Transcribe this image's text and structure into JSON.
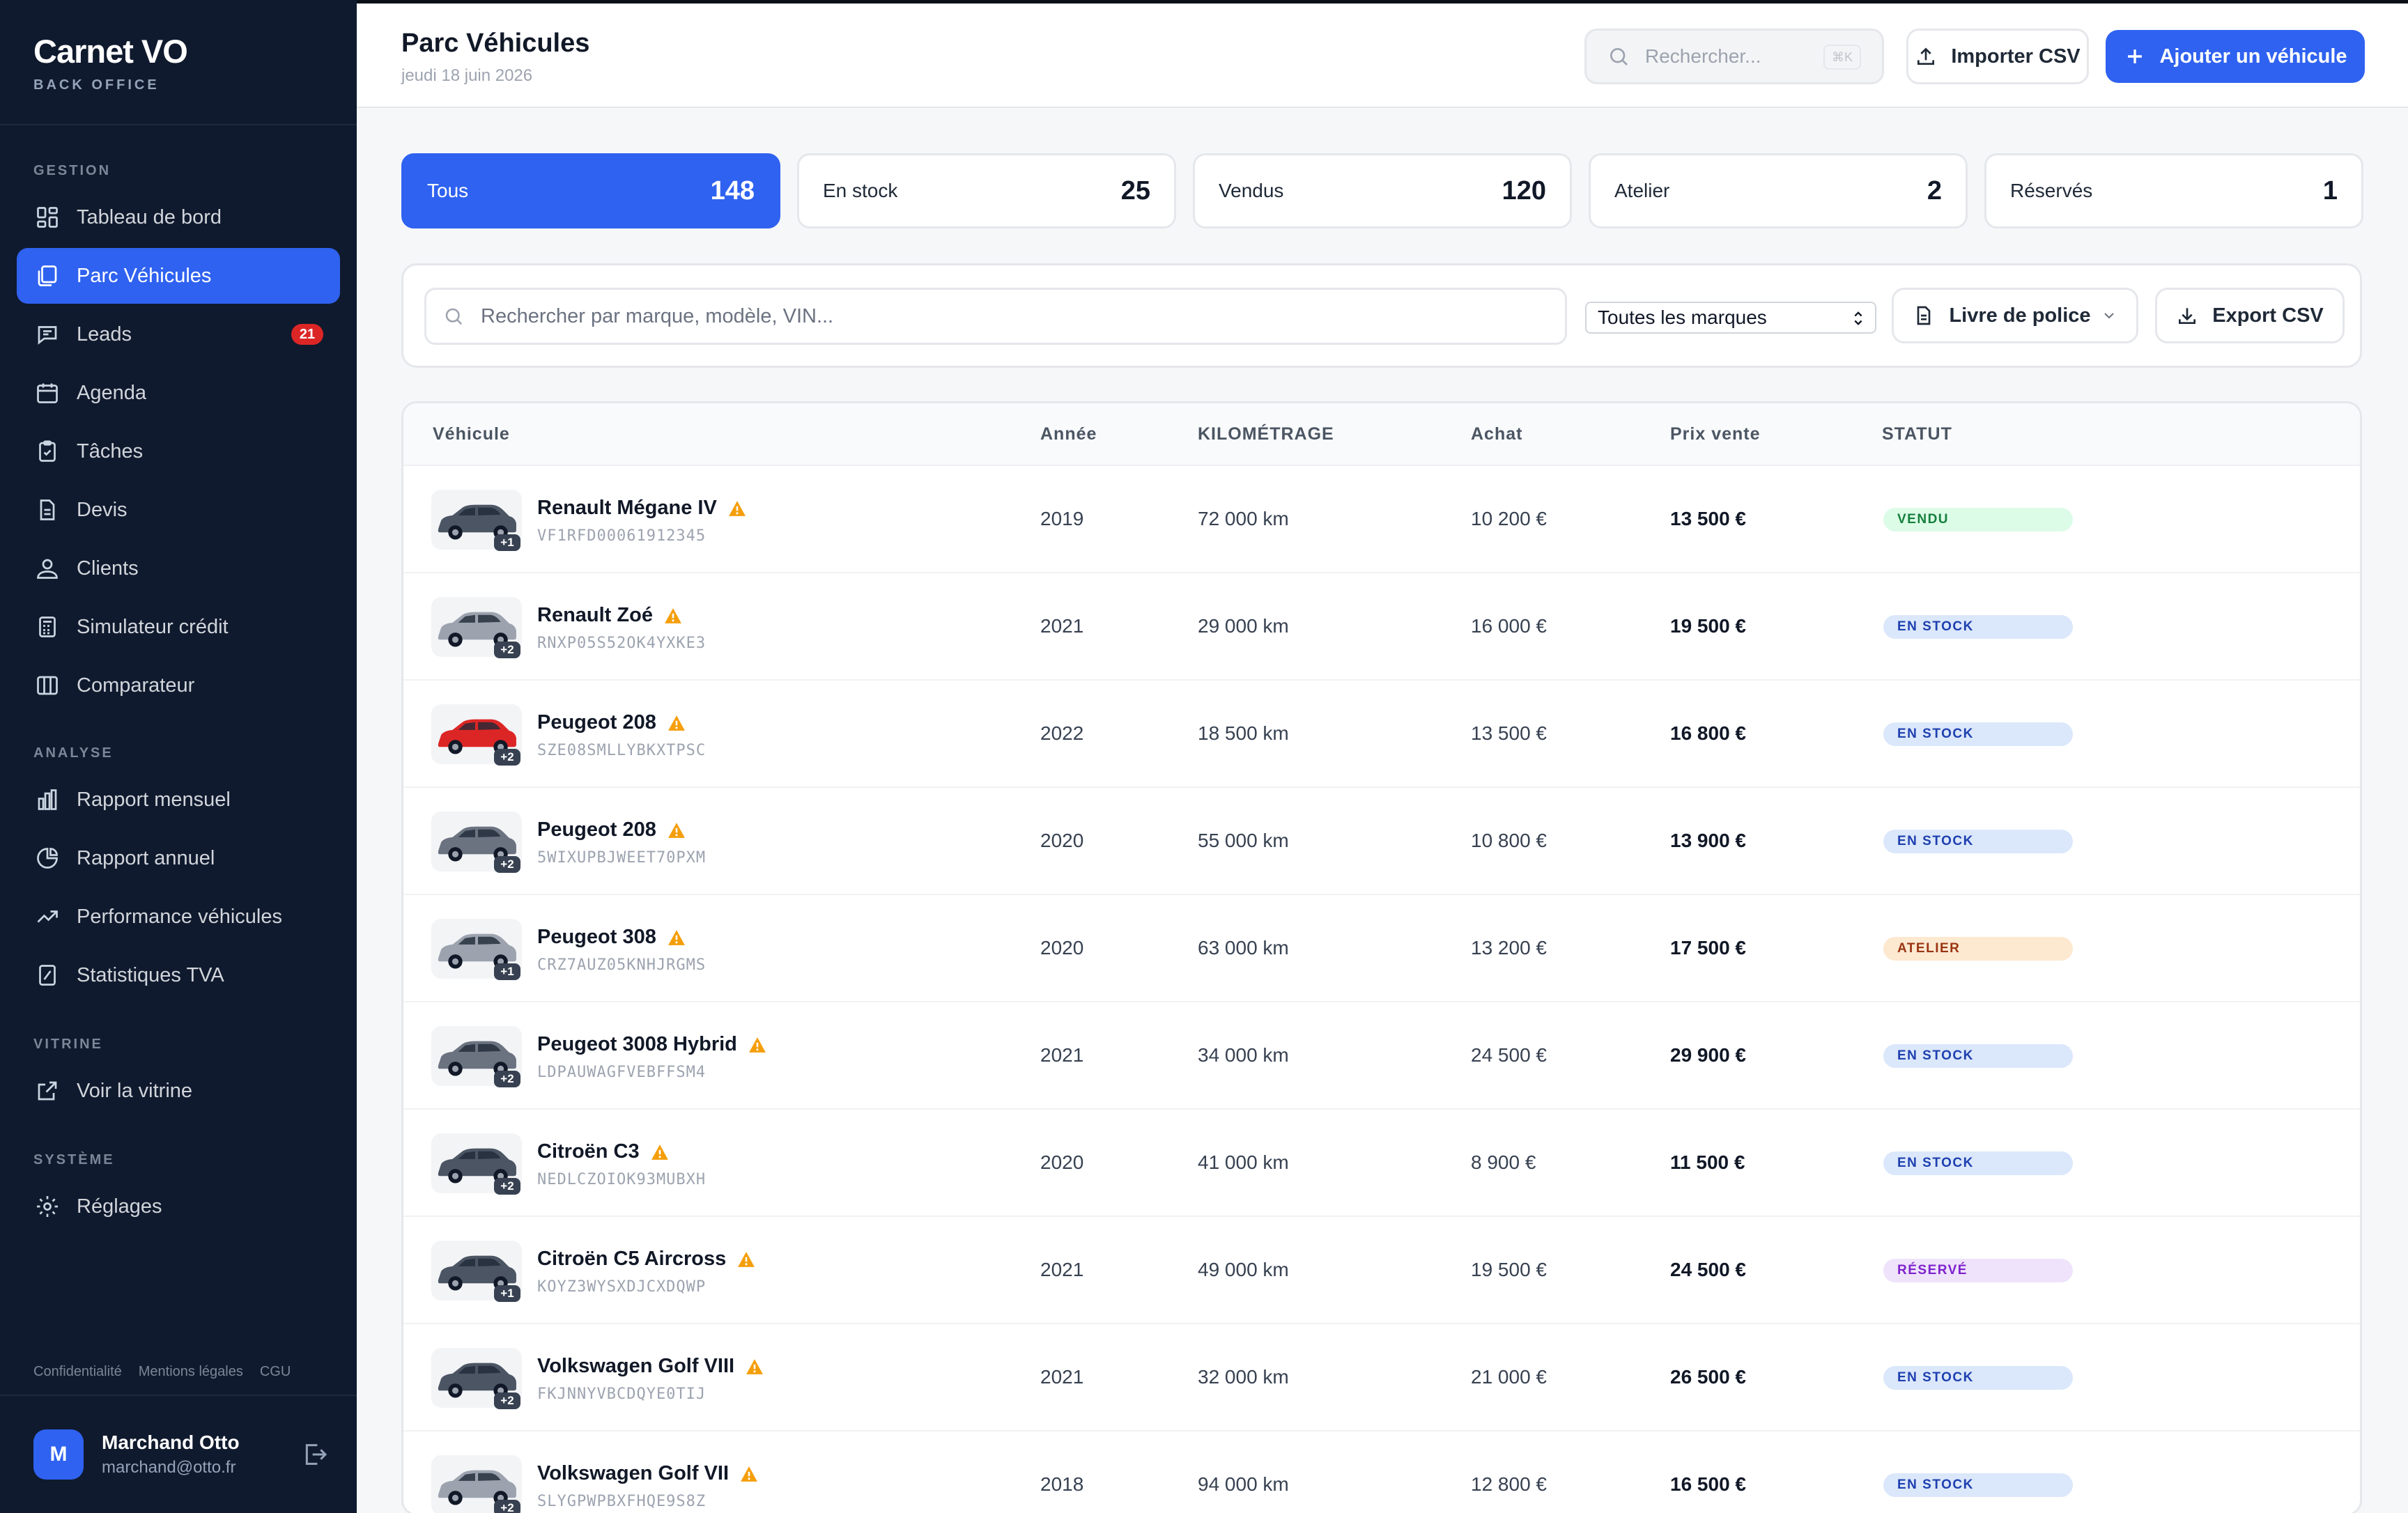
{
  "app": {
    "name": "Carnet VO",
    "subtitle": "BACK OFFICE"
  },
  "sidebar": {
    "sections": [
      {
        "label": "GESTION",
        "items": [
          {
            "label": "Tableau de bord",
            "icon": "dashboard-icon"
          },
          {
            "label": "Parc Véhicules",
            "icon": "car-stack-icon",
            "active": true
          },
          {
            "label": "Leads",
            "icon": "chat-icon",
            "badge": "21"
          },
          {
            "label": "Agenda",
            "icon": "calendar-icon"
          },
          {
            "label": "Tâches",
            "icon": "clipboard-icon"
          },
          {
            "label": "Devis",
            "icon": "document-icon"
          },
          {
            "label": "Clients",
            "icon": "user-icon"
          },
          {
            "label": "Simulateur crédit",
            "icon": "calculator-icon"
          },
          {
            "label": "Comparateur",
            "icon": "columns-icon"
          }
        ]
      },
      {
        "label": "ANALYSE",
        "items": [
          {
            "label": "Rapport mensuel",
            "icon": "bar-chart-icon"
          },
          {
            "label": "Rapport annuel",
            "icon": "pie-chart-icon"
          },
          {
            "label": "Performance véhicules",
            "icon": "trend-icon"
          },
          {
            "label": "Statistiques TVA",
            "icon": "tax-report-icon"
          }
        ]
      },
      {
        "label": "VITRINE",
        "items": [
          {
            "label": "Voir la vitrine",
            "icon": "external-link-icon"
          }
        ]
      },
      {
        "label": "SYSTÈME",
        "items": [
          {
            "label": "Réglages",
            "icon": "gear-icon"
          }
        ]
      }
    ],
    "legal": [
      "Confidentialité",
      "Mentions légales",
      "CGU"
    ],
    "user": {
      "initial": "M",
      "name": "Marchand Otto",
      "email": "marchand@otto.fr"
    }
  },
  "header": {
    "title": "Parc Véhicules",
    "date": "jeudi 18 juin 2026",
    "search_placeholder": "Rechercher...",
    "search_shortcut": "⌘K",
    "import_label": "Importer CSV",
    "add_label": "Ajouter un véhicule"
  },
  "stats": [
    {
      "label": "Tous",
      "count": "148",
      "active": true
    },
    {
      "label": "En stock",
      "count": "25"
    },
    {
      "label": "Vendus",
      "count": "120"
    },
    {
      "label": "Atelier",
      "count": "2"
    },
    {
      "label": "Réservés",
      "count": "1"
    }
  ],
  "filters": {
    "search_placeholder": "Rechercher par marque, modèle, VIN...",
    "brand_select": "Toutes les marques",
    "police_label": "Livre de police",
    "export_label": "Export CSV"
  },
  "table": {
    "columns": [
      "Véhicule",
      "Année",
      "KILOMÉTRAGE",
      "Achat",
      "Prix vente",
      "STATUT"
    ],
    "rows": [
      {
        "name": "Renault Mégane IV",
        "vin": "VF1RFD00061912345",
        "photos": "+1",
        "year": "2019",
        "km": "72 000 km",
        "purchase": "10 200 €",
        "price": "13 500 €",
        "status": "VENDU",
        "status_key": "vendu",
        "car_color": "#4b5563"
      },
      {
        "name": "Renault Zoé",
        "vin": "RNXP05S52OK4YXKE3",
        "photos": "+2",
        "year": "2021",
        "km": "29 000 km",
        "purchase": "16 000 €",
        "price": "19 500 €",
        "status": "EN STOCK",
        "status_key": "stock",
        "car_color": "#9ca3af"
      },
      {
        "name": "Peugeot 208",
        "vin": "SZE08SMLLYBKXTPSC",
        "photos": "+2",
        "year": "2022",
        "km": "18 500 km",
        "purchase": "13 500 €",
        "price": "16 800 €",
        "status": "EN STOCK",
        "status_key": "stock",
        "car_color": "#dc2626"
      },
      {
        "name": "Peugeot 208",
        "vin": "5WIXUPBJWEET70PXM",
        "photos": "+2",
        "year": "2020",
        "km": "55 000 km",
        "purchase": "10 800 €",
        "price": "13 900 €",
        "status": "EN STOCK",
        "status_key": "stock",
        "car_color": "#6b7280"
      },
      {
        "name": "Peugeot 308",
        "vin": "CRZ7AUZ05KNHJRGMS",
        "photos": "+1",
        "year": "2020",
        "km": "63 000 km",
        "purchase": "13 200 €",
        "price": "17 500 €",
        "status": "ATELIER",
        "status_key": "atelier",
        "car_color": "#9ca3af"
      },
      {
        "name": "Peugeot 3008 Hybrid",
        "vin": "LDPAUWAGFVEBFFSM4",
        "photos": "+2",
        "year": "2021",
        "km": "34 000 km",
        "purchase": "24 500 €",
        "price": "29 900 €",
        "status": "EN STOCK",
        "status_key": "stock",
        "car_color": "#6b7280"
      },
      {
        "name": "Citroën C3",
        "vin": "NEDLCZOIOK93MUBXH",
        "photos": "+2",
        "year": "2020",
        "km": "41 000 km",
        "purchase": "8 900 €",
        "price": "11 500 €",
        "status": "EN STOCK",
        "status_key": "stock",
        "car_color": "#4b5563"
      },
      {
        "name": "Citroën C5 Aircross",
        "vin": "KOYZ3WYSXDJCXDQWP",
        "photos": "+1",
        "year": "2021",
        "km": "49 000 km",
        "purchase": "19 500 €",
        "price": "24 500 €",
        "status": "RÉSERVÉ",
        "status_key": "reserve",
        "car_color": "#4b5563"
      },
      {
        "name": "Volkswagen Golf VIII",
        "vin": "FKJNNYVBCDQYE0TIJ",
        "photos": "+2",
        "year": "2021",
        "km": "32 000 km",
        "purchase": "21 000 €",
        "price": "26 500 €",
        "status": "EN STOCK",
        "status_key": "stock",
        "car_color": "#4b5563"
      },
      {
        "name": "Volkswagen Golf VII",
        "vin": "SLYGPWPBXFHQE9S8Z",
        "photos": "+2",
        "year": "2018",
        "km": "94 000 km",
        "purchase": "12 800 €",
        "price": "16 500 €",
        "status": "EN STOCK",
        "status_key": "stock",
        "car_color": "#9ca3af"
      }
    ]
  },
  "status_colors": {
    "vendu": {
      "bg": "#dcfce7",
      "fg": "#15803d"
    },
    "stock": {
      "bg": "#dbe7fb",
      "fg": "#1e40af"
    },
    "atelier": {
      "bg": "#fde8d0",
      "fg": "#9a3412"
    },
    "reserve": {
      "bg": "#efe3fb",
      "fg": "#7e22ce"
    }
  },
  "colors": {
    "accent": "#2f62f0",
    "sidebar_bg": "#101a2e",
    "warning": "#f59e0b"
  }
}
